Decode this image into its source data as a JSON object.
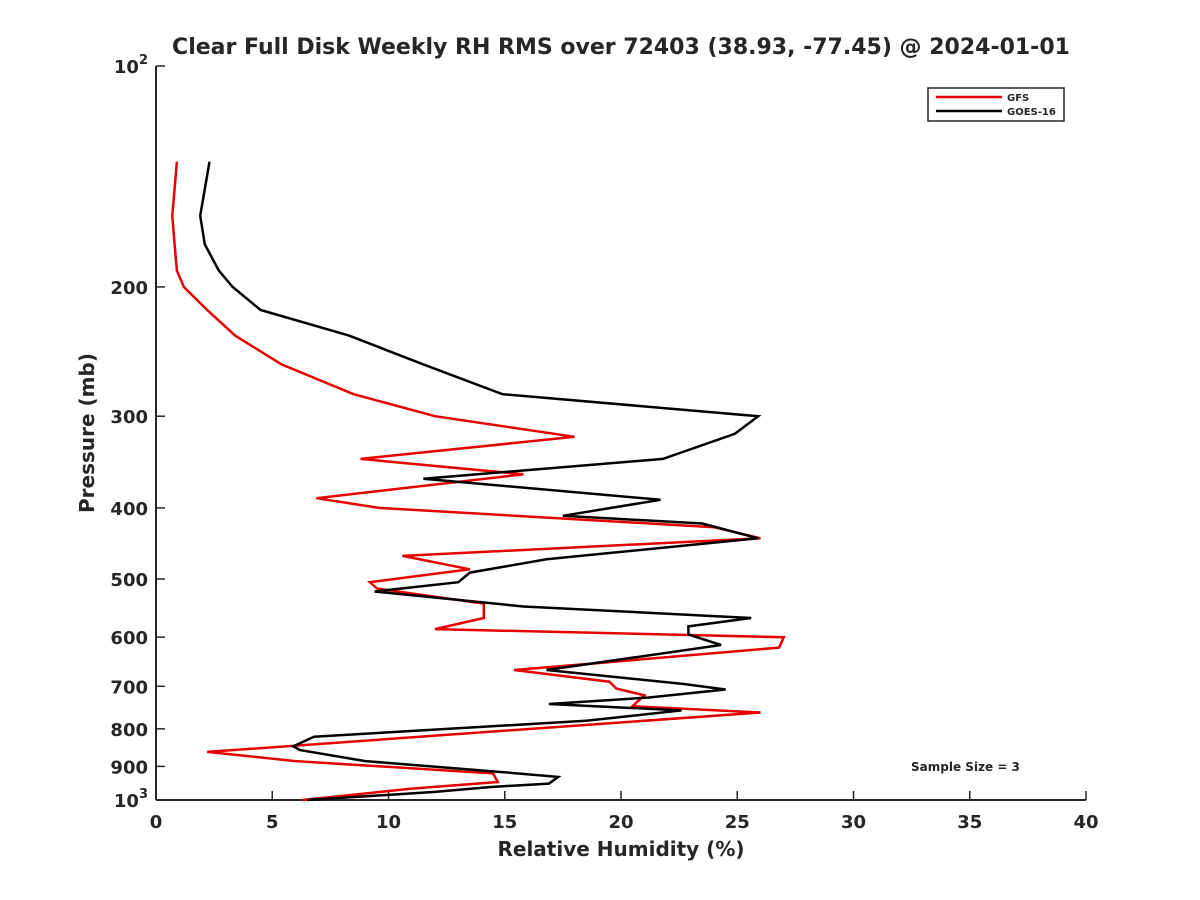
{
  "chart_data": {
    "type": "line",
    "title": "Clear Full Disk Weekly RH RMS over 72403 (38.93, -77.45) @ 2024-01-01",
    "xlabel": "Relative Humidity (%)",
    "ylabel": "Pressure (mb)",
    "xlim": [
      0,
      40
    ],
    "ylim": [
      100,
      1000
    ],
    "yscale": "log",
    "y_reversed": true,
    "grid": false,
    "legend_position": "top-right",
    "annotation": "Sample Size = 3",
    "x_ticks": [
      0,
      5,
      10,
      15,
      20,
      25,
      30,
      35,
      40
    ],
    "x_tick_labels": [
      "0",
      "5",
      "10",
      "15",
      "20",
      "25",
      "30",
      "35",
      "40"
    ],
    "y_ticks": [
      100,
      200,
      300,
      400,
      500,
      600,
      700,
      800,
      900,
      1000
    ],
    "y_tick_labels": [
      {
        "base": "10",
        "exp": "2"
      },
      {
        "base": "200",
        "exp": ""
      },
      {
        "base": "300",
        "exp": ""
      },
      {
        "base": "400",
        "exp": ""
      },
      {
        "base": "500",
        "exp": ""
      },
      {
        "base": "600",
        "exp": ""
      },
      {
        "base": "700",
        "exp": ""
      },
      {
        "base": "800",
        "exp": ""
      },
      {
        "base": "900",
        "exp": ""
      },
      {
        "base": "10",
        "exp": "3"
      }
    ],
    "series": [
      {
        "name": "GFS",
        "color": "#e60000",
        "x": [
          0.9,
          0.7,
          0.8,
          0.9,
          1.2,
          2.2,
          3.4,
          5.4,
          8.5,
          12.0,
          18.0,
          8.8,
          15.8,
          6.9,
          9.6,
          24.0,
          26.0,
          10.6,
          13.5,
          9.2,
          9.5,
          14.1,
          14.1,
          12.0,
          27.0,
          26.8,
          19.2,
          15.4,
          19.5,
          19.8,
          21.0,
          20.5,
          26.0,
          2.2,
          6.0,
          14.5,
          14.7,
          11.0,
          6.3
        ],
        "y": [
          135,
          160,
          175,
          190,
          200,
          215,
          233,
          255,
          280,
          300,
          320,
          343,
          360,
          388,
          400,
          425,
          440,
          465,
          485,
          505,
          515,
          540,
          565,
          585,
          600,
          620,
          650,
          665,
          690,
          705,
          720,
          745,
          760,
          860,
          885,
          920,
          945,
          965,
          1000
        ]
      },
      {
        "name": "GOES-16",
        "color": "#000000",
        "x": [
          2.3,
          1.9,
          2.1,
          2.7,
          3.3,
          4.5,
          8.3,
          11.5,
          14.9,
          25.9,
          24.9,
          21.8,
          11.5,
          21.7,
          17.5,
          23.5,
          25.9,
          16.8,
          13.5,
          13.0,
          9.4,
          15.8,
          25.6,
          22.9,
          22.9,
          24.3,
          16.8,
          22.7,
          24.5,
          21.2,
          16.9,
          22.6,
          18.5,
          6.8,
          5.9,
          6.2,
          9.0,
          14.7,
          17.3,
          16.9,
          14.4,
          12.0,
          6.5
        ],
        "y": [
          135,
          160,
          175,
          190,
          200,
          215,
          233,
          255,
          280,
          300,
          317,
          343,
          365,
          390,
          410,
          420,
          440,
          470,
          490,
          505,
          520,
          545,
          565,
          580,
          595,
          615,
          665,
          695,
          707,
          725,
          740,
          755,
          780,
          820,
          845,
          855,
          885,
          915,
          930,
          950,
          960,
          975,
          1000
        ]
      }
    ]
  }
}
